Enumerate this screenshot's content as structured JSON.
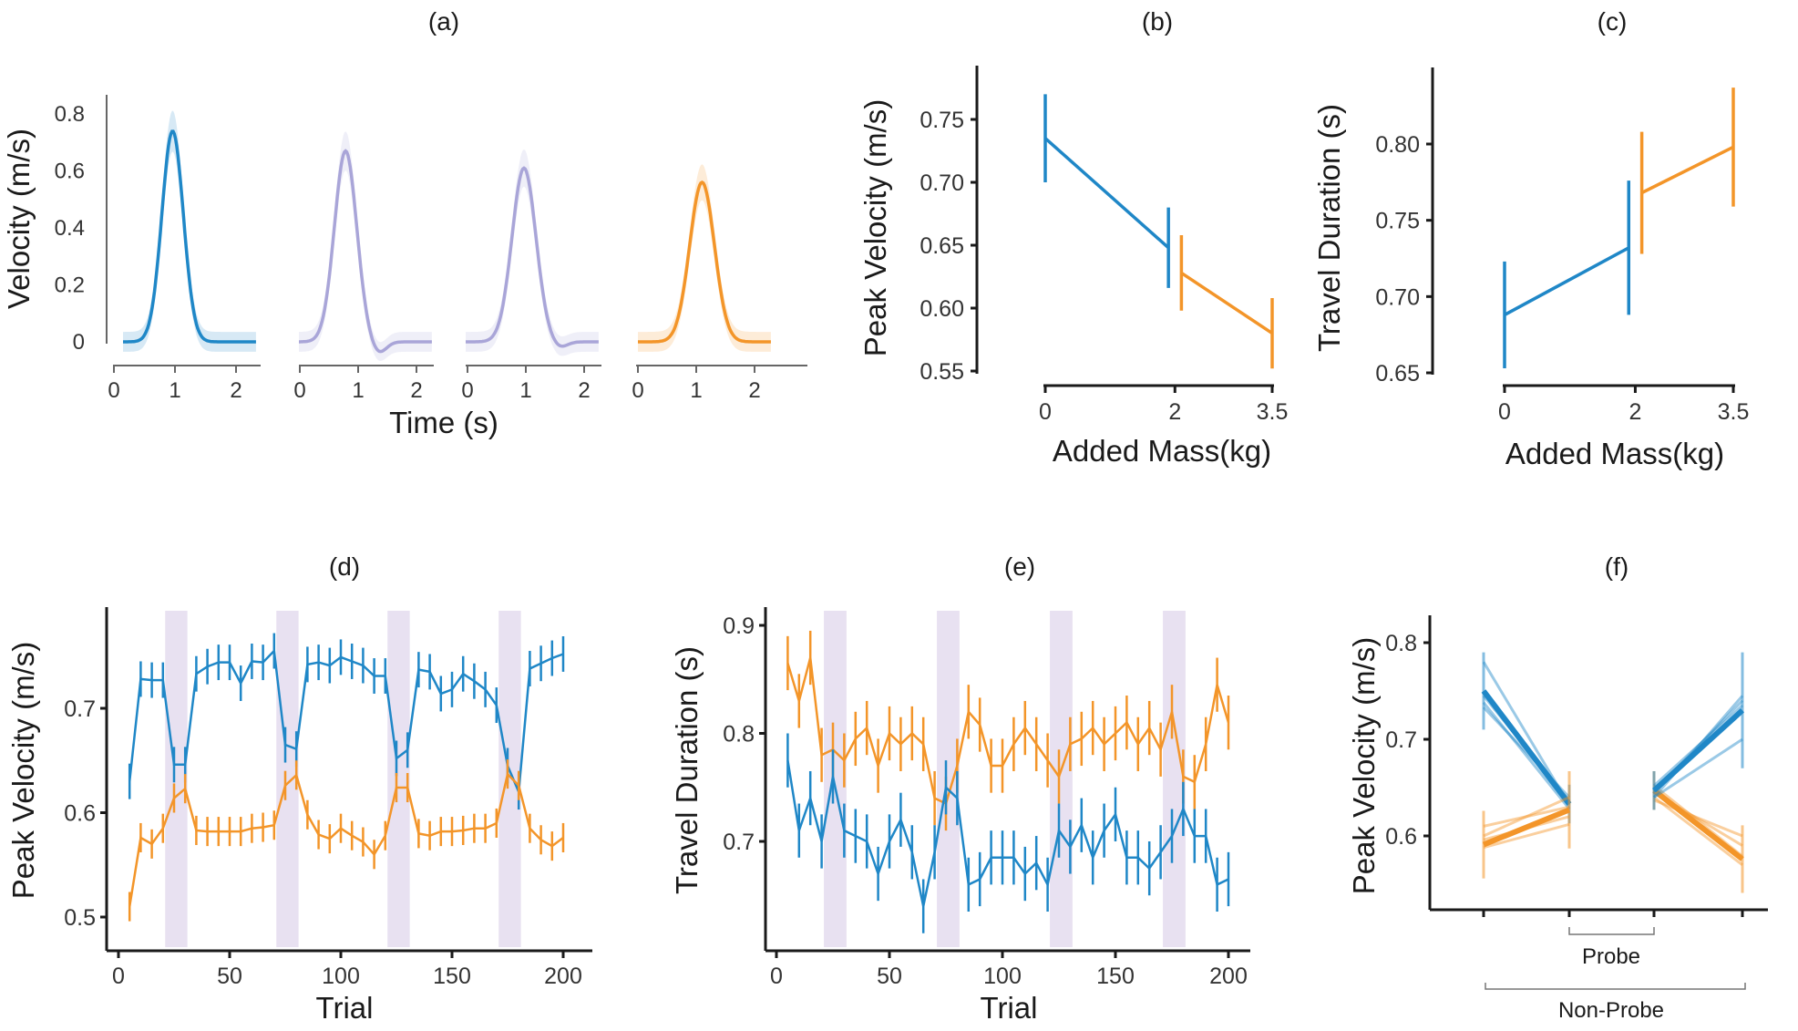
{
  "colors": {
    "blue": "#1f87c7",
    "orange": "#f39529",
    "lavender": "#a9a5d8",
    "shade": "#e8e1f1",
    "axis": "#1a1a1a",
    "light_axis": "#666666"
  },
  "chart_data": [
    {
      "panel": "(a)",
      "type": "line",
      "ylabel": "Velocity (m/s)",
      "xlabel": "Time (s)",
      "yticks": [
        "0",
        "0.2",
        "0.4",
        "0.6",
        "0.8"
      ],
      "ylim": [
        0,
        0.8
      ],
      "xlim": [
        0,
        2.4
      ],
      "xticks": [
        "0",
        "1",
        "2"
      ],
      "subplots": [
        {
          "color": "blue",
          "peak": 0.74,
          "peak_time": 0.85,
          "width": 0.26,
          "undershoot": 0.0
        },
        {
          "color": "lavender",
          "peak": 0.67,
          "peak_time": 0.8,
          "width": 0.27,
          "undershoot": 0.04
        },
        {
          "color": "lavender",
          "peak": 0.61,
          "peak_time": 1.0,
          "width": 0.29,
          "undershoot": 0.02
        },
        {
          "color": "orange",
          "peak": 0.56,
          "peak_time": 1.1,
          "width": 0.3,
          "undershoot": 0.0
        }
      ]
    },
    {
      "panel": "(b)",
      "type": "line",
      "ylabel": "Peak Velocity (m/s)",
      "xlabel": "Added Mass(kg)",
      "xticks": [
        "0",
        "2",
        "3.5"
      ],
      "yticks": [
        "0.55",
        "0.60",
        "0.65",
        "0.70",
        "0.75"
      ],
      "ylim": [
        0.55,
        0.79
      ],
      "series": [
        {
          "color": "blue",
          "x": [
            0,
            1.9
          ],
          "y": [
            0.735,
            0.648
          ],
          "err": [
            0.035,
            0.032
          ]
        },
        {
          "color": "orange",
          "x": [
            2.1,
            3.5
          ],
          "y": [
            0.628,
            0.58
          ],
          "err": [
            0.03,
            0.028
          ]
        }
      ]
    },
    {
      "panel": "(c)",
      "type": "line",
      "ylabel": "Travel Duration (s)",
      "xlabel": "Added Mass(kg)",
      "xticks": [
        "0",
        "2",
        "3.5"
      ],
      "yticks": [
        "0.65",
        "0.70",
        "0.75",
        "0.80"
      ],
      "ylim": [
        0.65,
        0.85
      ],
      "series": [
        {
          "color": "blue",
          "x": [
            0,
            1.9
          ],
          "y": [
            0.688,
            0.732
          ],
          "err": [
            0.035,
            0.044
          ]
        },
        {
          "color": "orange",
          "x": [
            2.1,
            3.5
          ],
          "y": [
            0.768,
            0.798
          ],
          "err": [
            0.04,
            0.039
          ]
        }
      ]
    },
    {
      "panel": "(d)",
      "type": "line",
      "ylabel": "Peak Velocity (m/s)",
      "xlabel": "Trial",
      "xticks": [
        "0",
        "50",
        "100",
        "150",
        "200"
      ],
      "yticks": [
        "0.5",
        "0.6",
        "0.7"
      ],
      "xlim": [
        0,
        205
      ],
      "ylim": [
        0.48,
        0.79
      ],
      "probe_blocks": [
        [
          21,
          31
        ],
        [
          71,
          81
        ],
        [
          121,
          131
        ],
        [
          171,
          181
        ]
      ],
      "x": [
        5,
        10,
        15,
        20,
        25,
        30,
        35,
        40,
        45,
        50,
        55,
        60,
        65,
        70,
        75,
        80,
        85,
        90,
        95,
        100,
        105,
        110,
        115,
        120,
        125,
        130,
        135,
        140,
        145,
        150,
        155,
        160,
        165,
        170,
        175,
        180,
        185,
        190,
        195,
        200
      ],
      "series": [
        {
          "color": "blue",
          "values": [
            0.63,
            0.728,
            0.727,
            0.727,
            0.646,
            0.646,
            0.733,
            0.74,
            0.744,
            0.744,
            0.724,
            0.745,
            0.744,
            0.755,
            0.665,
            0.661,
            0.742,
            0.744,
            0.741,
            0.749,
            0.745,
            0.741,
            0.731,
            0.731,
            0.652,
            0.66,
            0.737,
            0.735,
            0.714,
            0.718,
            0.733,
            0.726,
            0.718,
            0.703,
            0.645,
            0.62,
            0.738,
            0.743,
            0.748,
            0.752
          ],
          "err": 0.017
        },
        {
          "color": "orange",
          "values": [
            0.51,
            0.576,
            0.57,
            0.585,
            0.614,
            0.623,
            0.583,
            0.582,
            0.582,
            0.582,
            0.582,
            0.585,
            0.586,
            0.588,
            0.626,
            0.636,
            0.598,
            0.579,
            0.575,
            0.585,
            0.578,
            0.572,
            0.56,
            0.578,
            0.624,
            0.624,
            0.58,
            0.578,
            0.582,
            0.582,
            0.583,
            0.585,
            0.585,
            0.59,
            0.637,
            0.626,
            0.585,
            0.574,
            0.568,
            0.576
          ],
          "err": 0.014
        }
      ]
    },
    {
      "panel": "(e)",
      "type": "line",
      "ylabel": "Travel Duration (s)",
      "xlabel": "Trial",
      "xticks": [
        "0",
        "50",
        "100",
        "150",
        "200"
      ],
      "yticks": [
        "0.7",
        "0.8",
        "0.9"
      ],
      "xlim": [
        0,
        205
      ],
      "ylim": [
        0.62,
        0.915
      ],
      "probe_blocks": [
        [
          21,
          31
        ],
        [
          71,
          81
        ],
        [
          121,
          131
        ],
        [
          171,
          181
        ]
      ],
      "x": [
        5,
        10,
        15,
        20,
        25,
        30,
        35,
        40,
        45,
        50,
        55,
        60,
        65,
        70,
        75,
        80,
        85,
        90,
        95,
        100,
        105,
        110,
        115,
        120,
        125,
        130,
        135,
        140,
        145,
        150,
        155,
        160,
        165,
        170,
        175,
        180,
        185,
        190,
        195,
        200
      ],
      "series": [
        {
          "color": "orange",
          "values": [
            0.865,
            0.83,
            0.87,
            0.78,
            0.785,
            0.775,
            0.795,
            0.805,
            0.77,
            0.8,
            0.79,
            0.8,
            0.79,
            0.74,
            0.735,
            0.77,
            0.82,
            0.808,
            0.77,
            0.77,
            0.79,
            0.805,
            0.79,
            0.775,
            0.76,
            0.79,
            0.795,
            0.805,
            0.79,
            0.8,
            0.81,
            0.79,
            0.805,
            0.785,
            0.82,
            0.76,
            0.755,
            0.79,
            0.845,
            0.81
          ],
          "err": 0.025
        },
        {
          "color": "blue",
          "values": [
            0.775,
            0.71,
            0.74,
            0.7,
            0.76,
            0.71,
            0.705,
            0.7,
            0.67,
            0.7,
            0.72,
            0.69,
            0.64,
            0.69,
            0.75,
            0.74,
            0.66,
            0.665,
            0.685,
            0.685,
            0.685,
            0.67,
            0.68,
            0.66,
            0.71,
            0.695,
            0.715,
            0.685,
            0.71,
            0.725,
            0.685,
            0.685,
            0.675,
            0.69,
            0.705,
            0.73,
            0.705,
            0.705,
            0.66,
            0.665
          ],
          "err": 0.025
        }
      ]
    },
    {
      "panel": "(f)",
      "type": "line",
      "ylabel": "Peak Velocity (m/s)",
      "yticks": [
        "0.6",
        "0.7",
        "0.8"
      ],
      "ylim": [
        0.57,
        0.83
      ],
      "brackets": [
        "Probe",
        "Non-Probe"
      ],
      "left_pair": {
        "blue": {
          "thick": [
            0.75,
            0.633
          ],
          "thin": [
            [
              0.78,
              0.632
            ],
            [
              0.745,
              0.636
            ],
            [
              0.738,
              0.628
            ],
            [
              0.733,
              0.64
            ]
          ],
          "err_start": 0.04,
          "err_end": 0.02
        },
        "orange": {
          "thick": [
            0.591,
            0.627
          ],
          "thin": [
            [
              0.61,
              0.63
            ],
            [
              0.596,
              0.62
            ],
            [
              0.588,
              0.612
            ],
            [
              0.6,
              0.64
            ]
          ],
          "err_start": 0.035,
          "err_end": 0.04
        }
      },
      "right_pair": {
        "orange": {
          "thick": [
            0.647,
            0.576
          ],
          "thin": [
            [
              0.645,
              0.59
            ],
            [
              0.64,
              0.57
            ],
            [
              0.637,
              0.6
            ],
            [
              0.652,
              0.579
            ]
          ],
          "err_start": 0.02,
          "err_end": 0.035
        },
        "blue": {
          "thick": [
            0.647,
            0.73
          ],
          "thin": [
            [
              0.64,
              0.745
            ],
            [
              0.652,
              0.735
            ],
            [
              0.64,
              0.7
            ],
            [
              0.646,
              0.74
            ]
          ],
          "err_start": 0.02,
          "err_end": 0.06
        }
      }
    }
  ]
}
